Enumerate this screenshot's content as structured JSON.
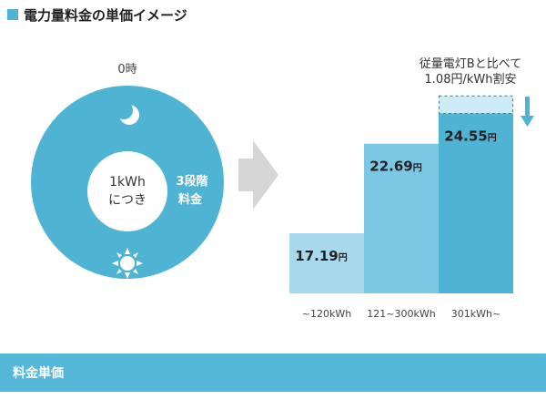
{
  "page": {
    "title": "電力量料金の単価イメージ",
    "footer_label": "料金単価"
  },
  "clock_diagram": {
    "top_label": "0時",
    "center_line1": "1kWh",
    "center_line2": "につき",
    "tier_line1": "3段階",
    "tier_line2": "料金",
    "moon_icon": "crescent-moon-icon",
    "sun_icon": "sun-icon",
    "arrow_icon": "right-arrow-icon"
  },
  "comparison_note": {
    "line1": "従量電灯Bと比べて",
    "line2": "1.08円/kWh割安",
    "arrow_icon": "down-arrow-icon"
  },
  "colors": {
    "accent": "#4fb3d3",
    "circle": "#4fb3d3",
    "bar_light": "#a8d9ec",
    "bar_medium": "#7cc8e4",
    "bar_dark": "#4fb3d3",
    "discount_fill": "#cdebf5",
    "arrow_gray": "#d6d6d6",
    "footer": "#55b8d8"
  },
  "chart_data": {
    "type": "bar",
    "title": "",
    "xlabel": "",
    "ylabel": "",
    "categories": [
      "~120kWh",
      "121~300kWh",
      "301kWh~"
    ],
    "values": [
      17.19,
      22.69,
      24.55
    ],
    "value_labels": [
      "17.19",
      "22.69",
      "24.55"
    ],
    "unit": "円",
    "discount": 1.08,
    "discount_applies_to": "301kWh~",
    "ylim": [
      13.5,
      26.2
    ],
    "grid": false,
    "legend": "none"
  }
}
